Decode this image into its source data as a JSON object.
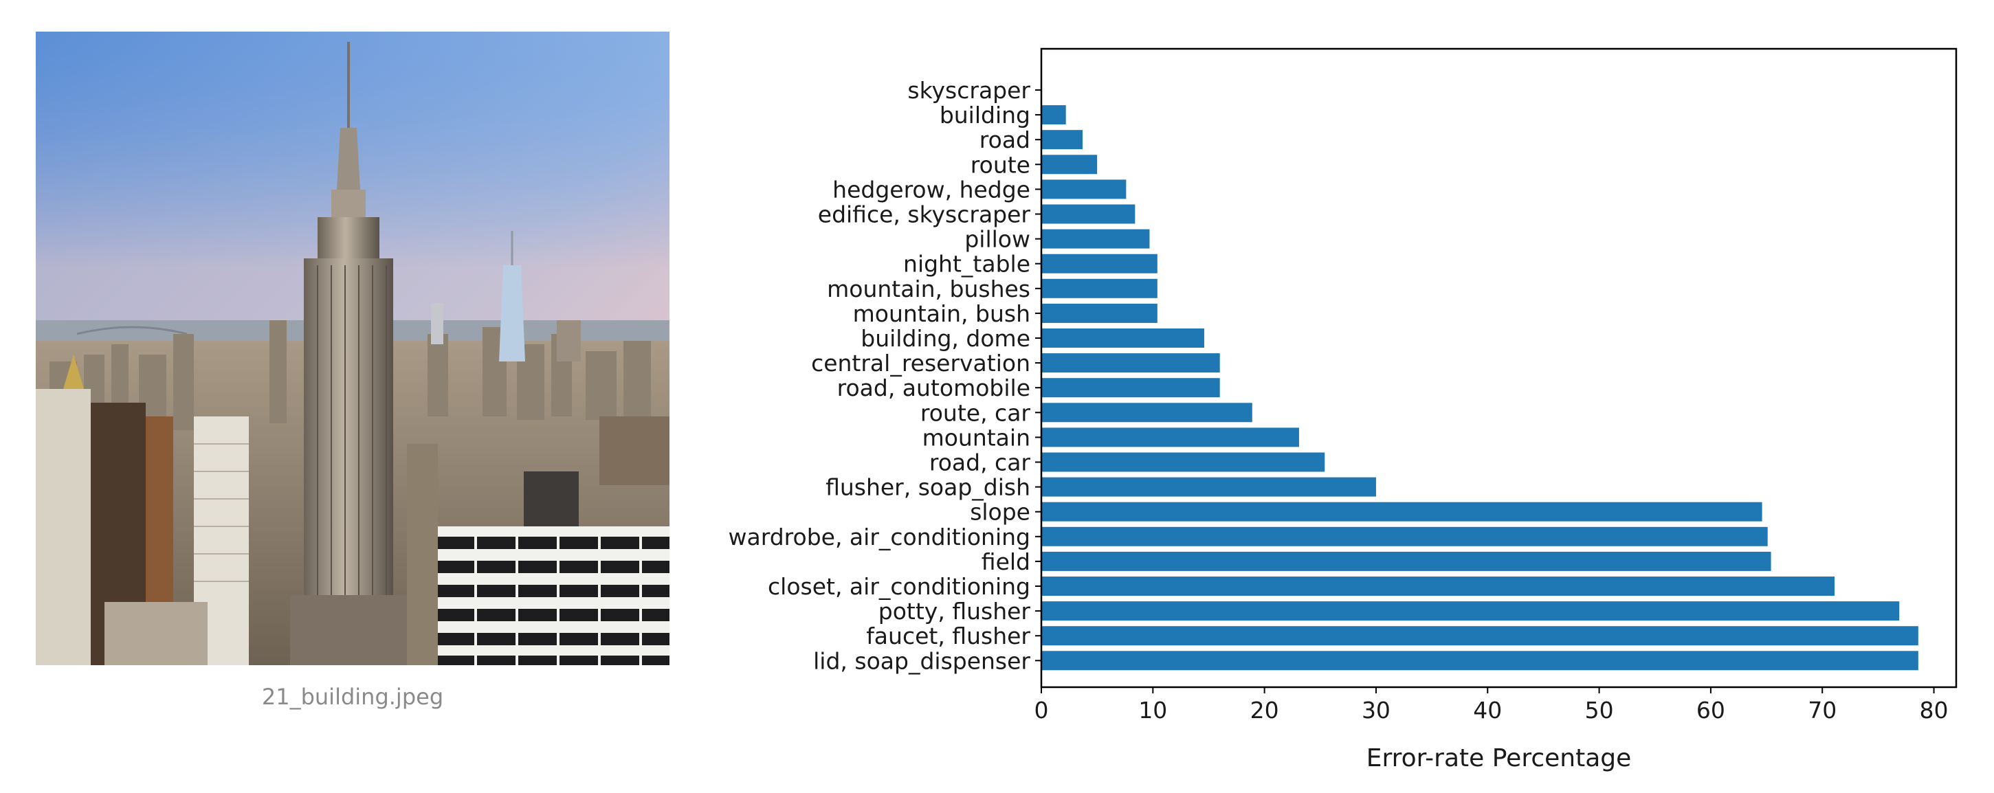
{
  "image": {
    "caption": "21_building.jpeg"
  },
  "chart_data": {
    "type": "bar",
    "orientation": "horizontal",
    "title": "",
    "xlabel": "Error-rate Percentage",
    "ylabel": "",
    "xlim": [
      0,
      82
    ],
    "xticks": [
      0,
      10,
      20,
      30,
      40,
      50,
      60,
      70,
      80
    ],
    "bar_color": "#1f77b4",
    "grid": false,
    "categories": [
      "skyscraper",
      "building",
      "road",
      "route",
      "hedgerow, hedge",
      "edifice, skyscraper",
      "pillow",
      "night_table",
      "mountain, bushes",
      "mountain, bush",
      "building, dome",
      "central_reservation",
      "road, automobile",
      "route, car",
      "mountain",
      "road, car",
      "flusher, soap_dish",
      "slope",
      "wardrobe, air_conditioning",
      "field",
      "closet, air_conditioning",
      "potty, flusher",
      "faucet, flusher",
      "lid, soap_dispenser"
    ],
    "values": [
      0,
      2.2,
      3.7,
      5.0,
      7.6,
      8.4,
      9.7,
      10.4,
      10.4,
      10.4,
      14.6,
      16.0,
      16.0,
      18.9,
      23.1,
      25.4,
      30.0,
      64.6,
      65.1,
      65.4,
      71.1,
      76.9,
      78.6,
      78.6
    ]
  }
}
